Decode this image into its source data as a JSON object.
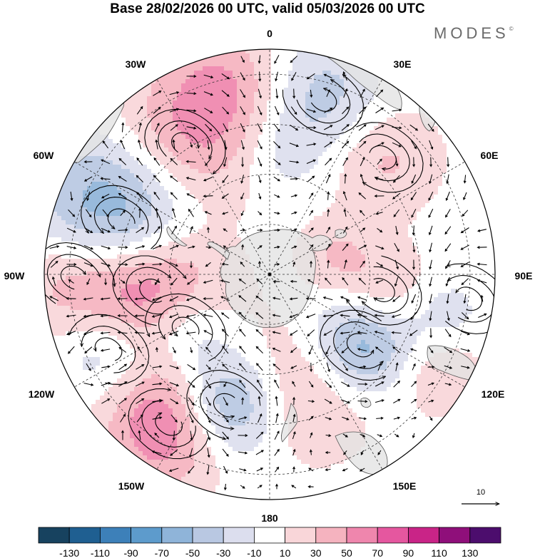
{
  "title": "Base 28/02/2026 00 UTC, valid 05/03/2026 00 UTC",
  "brand": "MODES",
  "brand_mark": "©",
  "longitude_labels": {
    "lon_0": "0",
    "lon_30e": "30E",
    "lon_60e": "60E",
    "lon_90e": "90E",
    "lon_120e": "120E",
    "lon_150e": "150E",
    "lon_180": "180",
    "lon_150w": "150W",
    "lon_120w": "120W",
    "lon_90w": "90W",
    "lon_60w": "60W",
    "lon_30w": "30W"
  },
  "reference_vector": {
    "value": "10"
  },
  "colorbar": {
    "colors": [
      "#17425f",
      "#1f5f91",
      "#3d80b9",
      "#5d9bcc",
      "#8fb4d9",
      "#b9c8e2",
      "#dcdeee",
      "#ffffff",
      "#f9d6d9",
      "#f5b3bf",
      "#ef86ad",
      "#e5579f",
      "#c92487",
      "#8f0f7a",
      "#4c0d6d"
    ],
    "tick_labels": [
      "-130",
      "-110",
      "-90",
      "-70",
      "-50",
      "-30",
      "-10",
      "10",
      "30",
      "50",
      "70",
      "90",
      "110",
      "130"
    ]
  },
  "anomaly_centers": [
    {
      "name": "low-south-atlantic",
      "lon": -70,
      "colat": 63,
      "value": -100,
      "spread": 23
    },
    {
      "name": "high-drake",
      "lon": -98,
      "colat": 47,
      "value": 100,
      "spread": 20
    },
    {
      "name": "high-west-pacific-edge",
      "lon": -91,
      "colat": 78,
      "value": 50,
      "spread": 18
    },
    {
      "name": "high-south-atlantic",
      "lon": -33,
      "colat": 62,
      "value": 62,
      "spread": 22
    },
    {
      "name": "low-africa-south",
      "lon": 17,
      "colat": 73,
      "value": -42,
      "spread": 17
    },
    {
      "name": "high-indian-west",
      "lon": 44,
      "colat": 65,
      "value": 36,
      "spread": 16
    },
    {
      "name": "high-kerguelen",
      "lon": 73,
      "colat": 27,
      "value": 28,
      "spread": 10
    },
    {
      "name": "high-indian-central",
      "lon": 98,
      "colat": 45,
      "value": 36,
      "spread": 13
    },
    {
      "name": "low-indian-east",
      "lon": 103,
      "colat": 72,
      "value": -22,
      "spread": 10
    },
    {
      "name": "low-south-australia",
      "lon": 128,
      "colat": 46,
      "value": -78,
      "spread": 15
    },
    {
      "name": "high-australia",
      "lon": 120,
      "colat": 78,
      "value": 28,
      "spread": 13
    },
    {
      "name": "high-tasman",
      "lon": 160,
      "colat": 47,
      "value": 44,
      "spread": 20
    },
    {
      "name": "low-new-zealand",
      "lon": -162,
      "colat": 55,
      "value": -80,
      "spread": 15
    },
    {
      "name": "high-pacific-south",
      "lon": -146,
      "colat": 72,
      "value": 78,
      "spread": 18
    },
    {
      "name": "low-amundsen",
      "lon": -123,
      "colat": 40,
      "value": -50,
      "spread": 13
    },
    {
      "name": "low-pacific-west",
      "lon": -115,
      "colat": 71,
      "value": -46,
      "spread": 14
    },
    {
      "name": "low-atlantic-north",
      "lon": 4,
      "colat": 47,
      "value": -20,
      "spread": 12
    },
    {
      "name": "high-mid-atlantic",
      "lon": -12,
      "colat": 80,
      "value": 36,
      "spread": 16
    }
  ],
  "vortices": [
    {
      "lon": -70,
      "colat": 63,
      "sense": -1
    },
    {
      "lon": -98,
      "colat": 47,
      "sense": 1
    },
    {
      "lon": -91,
      "colat": 78,
      "sense": 1
    },
    {
      "lon": -33,
      "colat": 62,
      "sense": 1
    },
    {
      "lon": 17,
      "colat": 73,
      "sense": -1
    },
    {
      "lon": 44,
      "colat": 65,
      "sense": 1
    },
    {
      "lon": 98,
      "colat": 45,
      "sense": 1
    },
    {
      "lon": 128,
      "colat": 46,
      "sense": -1
    },
    {
      "lon": -162,
      "colat": 55,
      "sense": -1
    },
    {
      "lon": -146,
      "colat": 72,
      "sense": 1
    },
    {
      "lon": -123,
      "colat": 40,
      "sense": -1
    },
    {
      "lon": -115,
      "colat": 71,
      "sense": -1
    },
    {
      "lon": 97,
      "colat": 80,
      "sense": -1
    }
  ]
}
